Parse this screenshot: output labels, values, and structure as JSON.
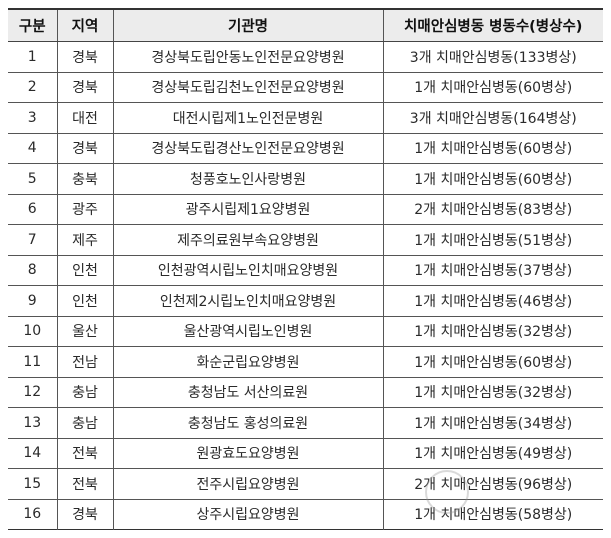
{
  "headers": [
    "구분",
    "지역",
    "기관명",
    "치매안심병동 병동수(병상수)"
  ],
  "rows": [
    [
      "1",
      "경북",
      "경상북도립안동노인전문요양병원",
      "3개 치매안심병동(133병상)"
    ],
    [
      "2",
      "경북",
      "경상북도립김천노인전문요양병원",
      "1개 치매안심병동(60병상)"
    ],
    [
      "3",
      "대전",
      "대전시립제1노인전문병원",
      "3개 치매안심병동(164병상)"
    ],
    [
      "4",
      "경북",
      "경상북도립경산노인전문요양병원",
      "1개 치매안심병동(60병상)"
    ],
    [
      "5",
      "충북",
      "청풍호노인사랑병원",
      "1개 치매안심병동(60병상)"
    ],
    [
      "6",
      "광주",
      "광주시립제1요양병원",
      "2개 치매안심병동(83병상)"
    ],
    [
      "7",
      "제주",
      "제주의료원부속요양병원",
      "1개 치매안심병동(51병상)"
    ],
    [
      "8",
      "인천",
      "인천광역시립노인치매요양병원",
      "1개 치매안심병동(37병상)"
    ],
    [
      "9",
      "인천",
      "인천제2시립노인치매요양병원",
      "1개 치매안심병동(46병상)"
    ],
    [
      "10",
      "울산",
      "울산광역시립노인병원",
      "1개 치매안심병동(32병상)"
    ],
    [
      "11",
      "전남",
      "화순군립요양병원",
      "1개 치매안심병동(60병상)"
    ],
    [
      "12",
      "충남",
      "충청남도 서산의료원",
      "1개 치매안심병동(32병상)"
    ],
    [
      "13",
      "충남",
      "충청남도 홍성의료원",
      "1개 치매안심병동(34병상)"
    ],
    [
      "14",
      "전북",
      "원광효도요양병원",
      "1개 치매안심병동(49병상)"
    ],
    [
      "15",
      "전북",
      "전주시립요양병원",
      "2개 치매안심병동(96병상)"
    ],
    [
      "16",
      "경북",
      "상주시립요양병원",
      "1개 치매안심병동(58병상)"
    ]
  ]
}
